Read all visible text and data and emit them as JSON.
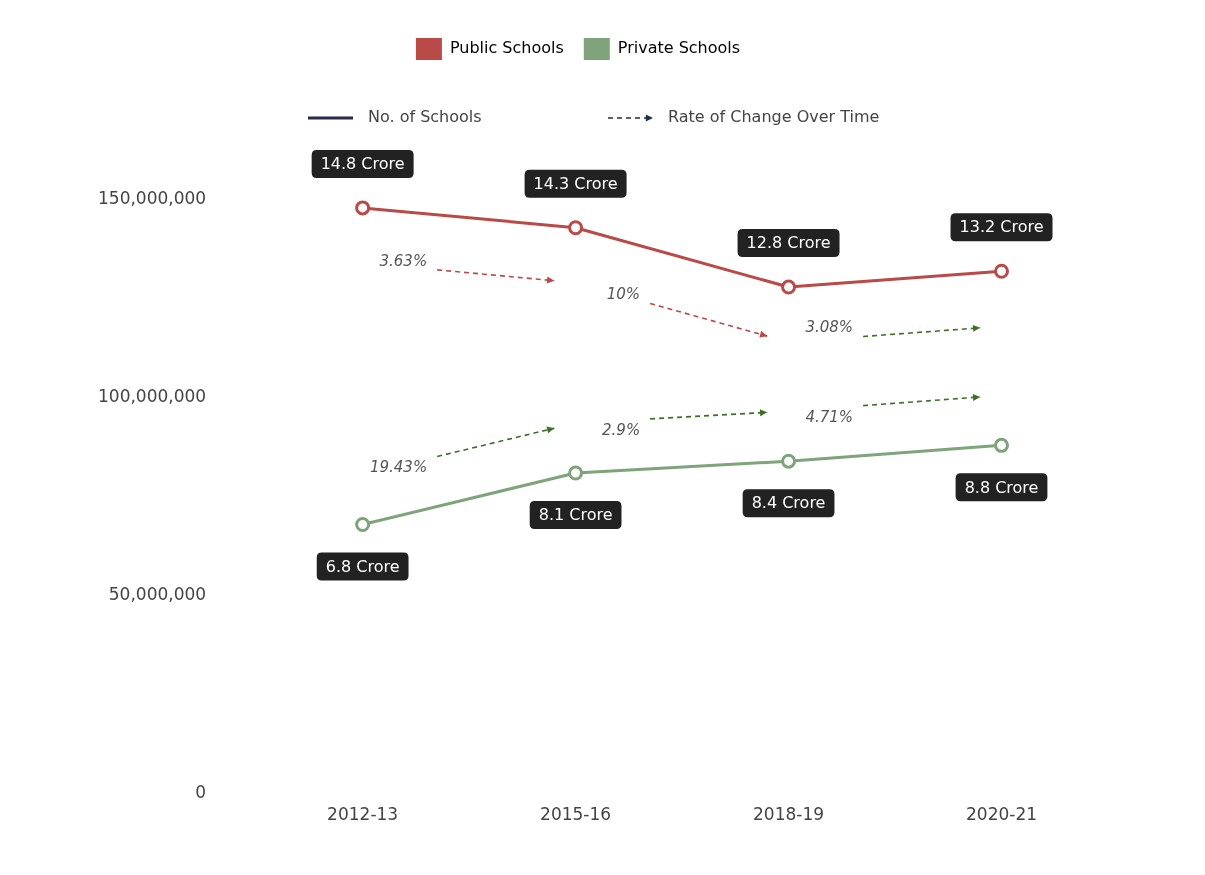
{
  "chart_data": {
    "type": "line",
    "categories": [
      "2012-13",
      "2015-16",
      "2018-19",
      "2020-21"
    ],
    "series": [
      {
        "name": "Public Schools",
        "color": "#b94a48",
        "values": [
          148000000,
          143000000,
          128000000,
          132000000
        ]
      },
      {
        "name": "Private Schools",
        "color": "#7fa37a",
        "values": [
          68000000,
          81000000,
          84000000,
          88000000
        ]
      }
    ],
    "ylim": [
      0,
      150000000
    ],
    "yticks": [
      {
        "value": 0,
        "label": "0"
      },
      {
        "value": 50000000,
        "label": "50,000,000"
      },
      {
        "value": 100000000,
        "label": "100,000,000"
      },
      {
        "value": 150000000,
        "label": "150,000,000"
      }
    ],
    "grid": false,
    "legend": "top",
    "marker": "circle",
    "line_style": "solid",
    "annotations": [
      "No. of Schools",
      "Rate of Change Over Time",
      "3.63%",
      "10%",
      "3.08%",
      "19.43%",
      "2.9%",
      "4.71%",
      {
        "text": "14.8 Crore",
        "x": "2012-13",
        "y": 148000000
      },
      {
        "text": "14.3 Crore",
        "x": "2015-16",
        "y": 143000000
      },
      {
        "text": "12.8 Crore",
        "x": "2018-19",
        "y": 128000000
      },
      {
        "text": "13.2 Crore",
        "x": "2020-21",
        "y": 132000000
      },
      {
        "text": "6.8 Crore",
        "x": "2012-13",
        "y": 68000000
      },
      {
        "text": "8.1 Crore",
        "x": "2015-16",
        "y": 81000000
      },
      {
        "text": "8.4 Crore",
        "x": "2018-19",
        "y": 84000000
      },
      {
        "text": "8.8 Crore",
        "x": "2020-21",
        "y": 88000000
      }
    ]
  }
}
